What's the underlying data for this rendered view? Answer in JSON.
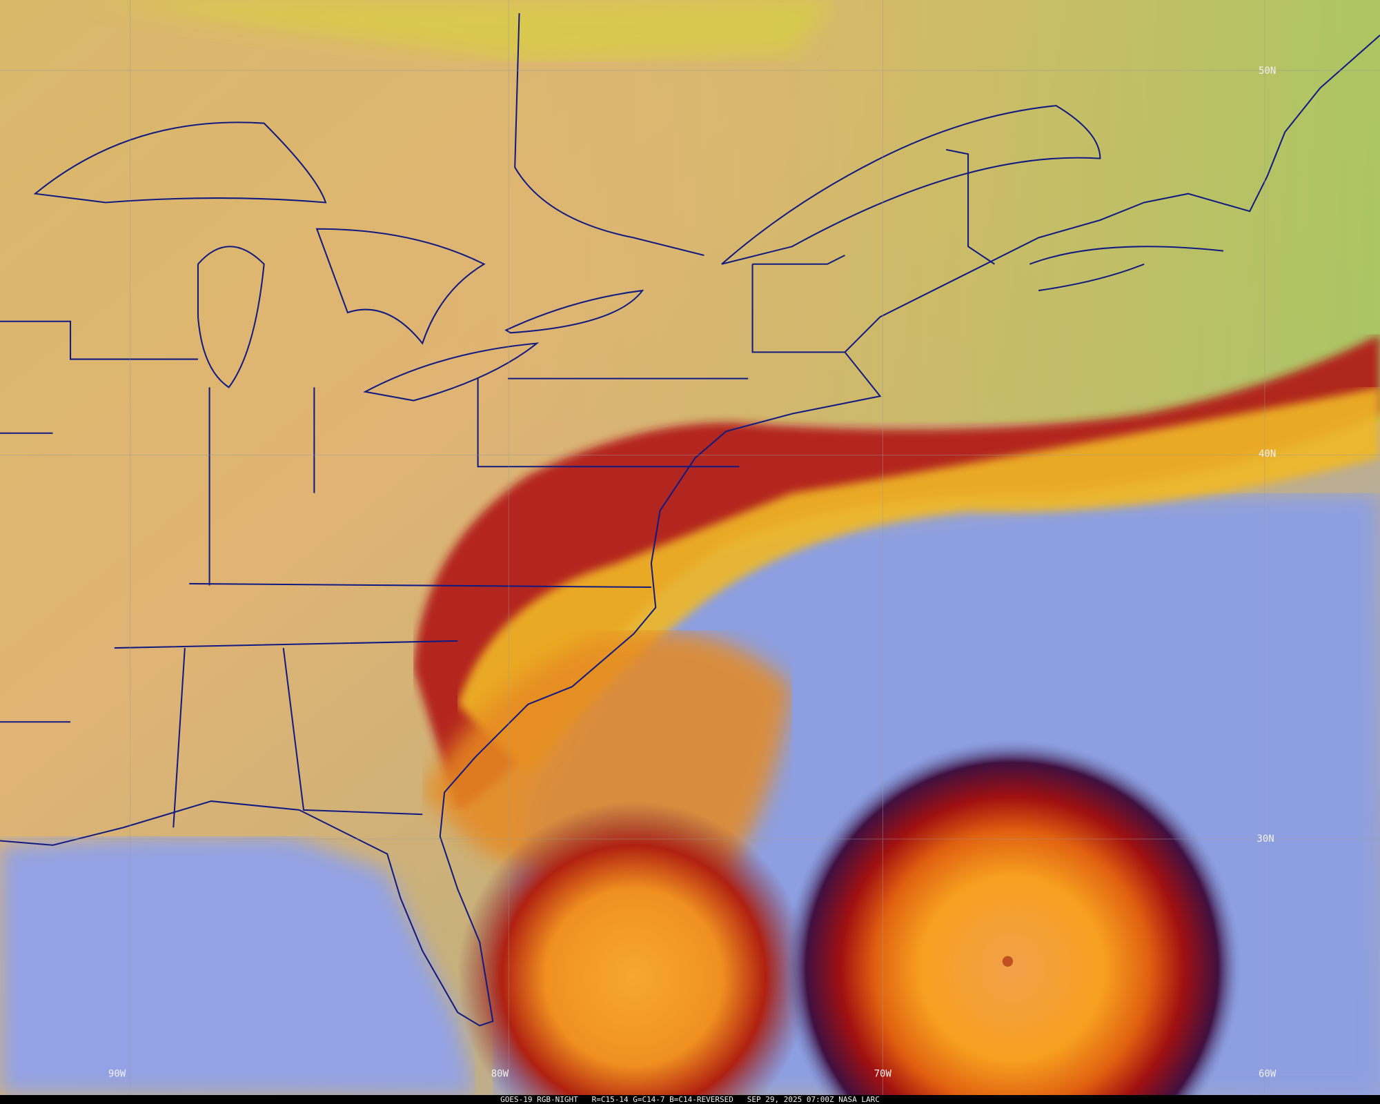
{
  "caption": {
    "product": "GOES-19 RGB-NIGHT",
    "recipe": "R=C15-14 G=C14-7 B=C14-REVERSED",
    "datetime": "SEP 29, 2025 07:00Z",
    "source": "NASA LARC"
  },
  "grid": {
    "longitudes": [
      "90W",
      "80W",
      "70W",
      "60W"
    ],
    "latitudes": [
      "50N",
      "40N",
      "30N"
    ]
  },
  "colors": {
    "land": "#e3b070",
    "land_north": "#b9c46a",
    "ocean_clear": "#8ea0e0",
    "high_cloud_red": "#b01010",
    "cloud_yellow": "#f0c020",
    "storm_core": "#f8a030",
    "boundaries": "#101a80",
    "gridline": "#9a9a9a"
  }
}
